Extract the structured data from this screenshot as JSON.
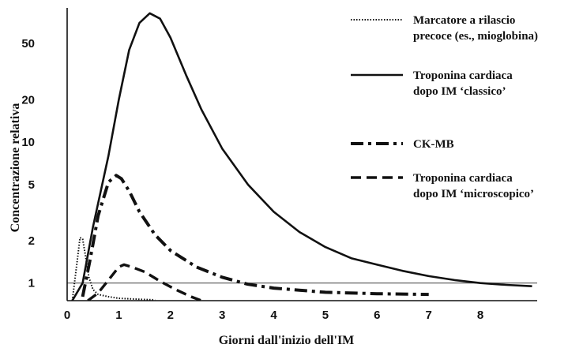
{
  "chart_data": {
    "type": "line",
    "xlabel": "Giorni dall'inizio dell'IM",
    "ylabel": "Concentrazione relativa",
    "y_scale": "log",
    "xlim": [
      0,
      9.1
    ],
    "ylim": [
      0.75,
      85
    ],
    "x_ticks": [
      0,
      1,
      2,
      3,
      4,
      5,
      6,
      7,
      8
    ],
    "y_ticks": [
      1,
      2,
      5,
      10,
      20,
      50
    ],
    "reference_line_y": 1,
    "grid": false,
    "legend_position": "top-right",
    "series": [
      {
        "name": "Marcatore a rilascio precoce (es., mioglobina)",
        "style": "dotted",
        "x": [
          0.1,
          0.18,
          0.25,
          0.3,
          0.35,
          0.42,
          0.5,
          0.6,
          0.8,
          1.0,
          1.3,
          1.7
        ],
        "y": [
          0.75,
          1.3,
          2.1,
          2.05,
          1.6,
          1.1,
          0.9,
          0.83,
          0.8,
          0.78,
          0.77,
          0.76
        ]
      },
      {
        "name": "Troponina cardiaca dopo IM ‘classico’",
        "style": "solid",
        "x": [
          0.1,
          0.3,
          0.5,
          0.8,
          1.0,
          1.2,
          1.4,
          1.6,
          1.8,
          2.0,
          2.3,
          2.6,
          3.0,
          3.5,
          4.0,
          4.5,
          5.0,
          5.5,
          6.0,
          6.5,
          7.0,
          7.5,
          8.0,
          8.5,
          9.0
        ],
        "y": [
          0.75,
          1.0,
          2.5,
          8.0,
          20.0,
          45.0,
          70.0,
          82.0,
          75.0,
          55.0,
          30.0,
          17.0,
          9.0,
          5.0,
          3.2,
          2.3,
          1.8,
          1.5,
          1.35,
          1.22,
          1.12,
          1.05,
          1.0,
          0.97,
          0.95
        ]
      },
      {
        "name": "CK-MB",
        "style": "dashdot",
        "x": [
          0.3,
          0.45,
          0.6,
          0.8,
          0.95,
          1.05,
          1.2,
          1.4,
          1.7,
          2.0,
          2.5,
          3.0,
          3.5,
          4.0,
          5.0,
          6.0,
          7.0
        ],
        "y": [
          0.8,
          1.5,
          3.0,
          5.2,
          5.8,
          5.5,
          4.5,
          3.2,
          2.2,
          1.7,
          1.3,
          1.1,
          0.98,
          0.92,
          0.86,
          0.84,
          0.83
        ]
      },
      {
        "name": "Troponina cardiaca dopo IM ‘microscopico’",
        "style": "dashed",
        "x": [
          0.4,
          0.6,
          0.8,
          1.0,
          1.1,
          1.25,
          1.5,
          1.8,
          2.1,
          2.4,
          2.6
        ],
        "y": [
          0.75,
          0.85,
          1.05,
          1.3,
          1.35,
          1.3,
          1.2,
          1.03,
          0.9,
          0.8,
          0.75
        ]
      }
    ]
  }
}
